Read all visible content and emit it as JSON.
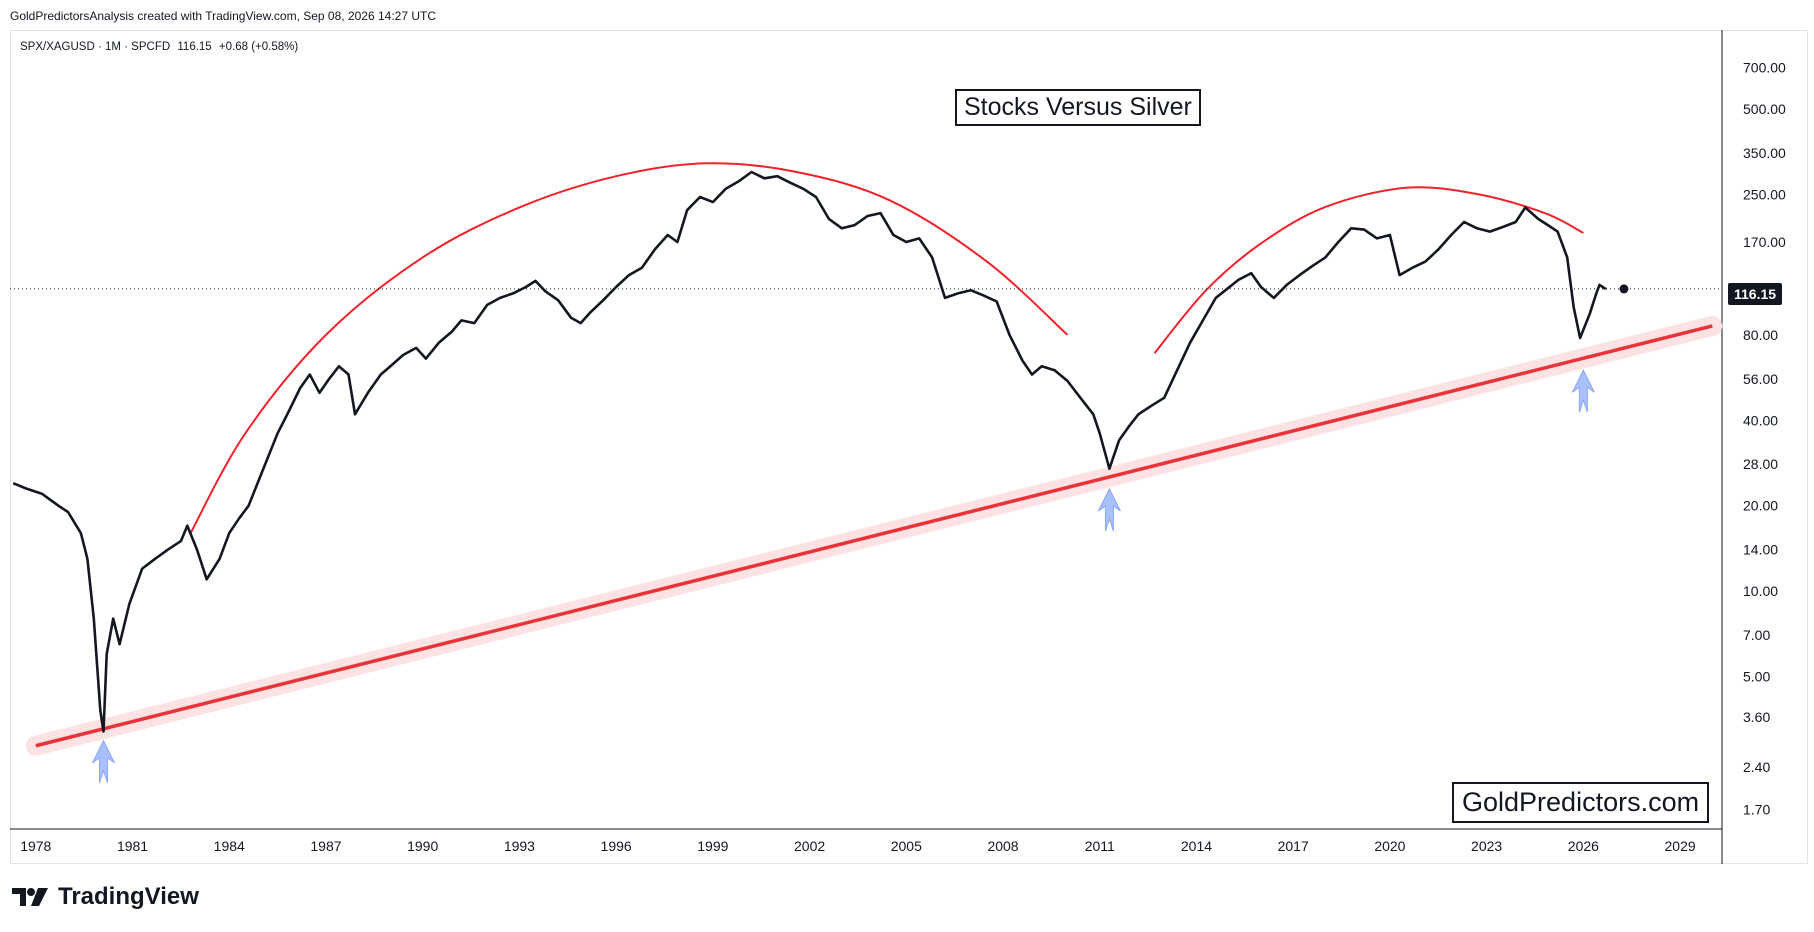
{
  "header": {
    "credit": "GoldPredictorsAnalysis created with TradingView.com, Sep 08, 2026 14:27 UTC"
  },
  "legend": {
    "symbol": "SPX/XAGUSD · 1M · SPCFD",
    "last": "116.15",
    "change": "+0.68 (+0.58%)"
  },
  "price_label": "116.15",
  "watermark": "GoldPredictors.com",
  "brand": {
    "name": "TradingView",
    "icon": "tradingview-logo-icon"
  },
  "colors": {
    "price_line": "#131722",
    "trend_line": "#e8333b",
    "trend_band": "#fde2e4",
    "arc": "#f0222b",
    "arrow": "#a9c0ff",
    "axis_text": "#131722"
  },
  "chart_data": {
    "type": "line",
    "title": "Stocks Versus Silver",
    "scale": "log",
    "ylim": [
      1.45,
      950
    ],
    "xlim": [
      1977.2,
      2030.3
    ],
    "x_ticks": [
      "1978",
      "1981",
      "1984",
      "1987",
      "1990",
      "1993",
      "1996",
      "1999",
      "2002",
      "2005",
      "2008",
      "2011",
      "2014",
      "2017",
      "2020",
      "2023",
      "2026",
      "2029"
    ],
    "y_ticks": [
      "700.00",
      "500.00",
      "350.00",
      "250.00",
      "170.00",
      "116.15",
      "80.00",
      "56.00",
      "40.00",
      "28.00",
      "20.00",
      "14.00",
      "10.00",
      "7.00",
      "5.00",
      "3.60",
      "2.40",
      "1.70"
    ],
    "grid": false,
    "last_value": 116.15,
    "series": [
      {
        "points": [
          [
            1977.3,
            24
          ],
          [
            1977.7,
            23
          ],
          [
            1978.2,
            22
          ],
          [
            1978.7,
            20
          ],
          [
            1979.0,
            19
          ],
          [
            1979.4,
            16
          ],
          [
            1979.6,
            13
          ],
          [
            1979.8,
            8
          ],
          [
            1980.0,
            3.8
          ],
          [
            1980.1,
            3.2
          ],
          [
            1980.2,
            6
          ],
          [
            1980.4,
            8
          ],
          [
            1980.6,
            6.5
          ],
          [
            1980.9,
            9
          ],
          [
            1981.3,
            12
          ],
          [
            1981.7,
            13
          ],
          [
            1982.1,
            14
          ],
          [
            1982.5,
            15
          ],
          [
            1982.7,
            17
          ],
          [
            1983.0,
            14
          ],
          [
            1983.3,
            11
          ],
          [
            1983.7,
            13
          ],
          [
            1984.0,
            16
          ],
          [
            1984.3,
            18
          ],
          [
            1984.6,
            20
          ],
          [
            1985.0,
            26
          ],
          [
            1985.5,
            36
          ],
          [
            1985.8,
            42
          ],
          [
            1986.2,
            52
          ],
          [
            1986.5,
            58
          ],
          [
            1986.8,
            50
          ],
          [
            1987.1,
            56
          ],
          [
            1987.4,
            62
          ],
          [
            1987.7,
            58
          ],
          [
            1987.9,
            42
          ],
          [
            1988.3,
            50
          ],
          [
            1988.7,
            58
          ],
          [
            1989.0,
            62
          ],
          [
            1989.4,
            68
          ],
          [
            1989.8,
            72
          ],
          [
            1990.1,
            66
          ],
          [
            1990.5,
            75
          ],
          [
            1990.9,
            82
          ],
          [
            1991.2,
            90
          ],
          [
            1991.6,
            88
          ],
          [
            1992.0,
            102
          ],
          [
            1992.4,
            108
          ],
          [
            1992.8,
            112
          ],
          [
            1993.2,
            118
          ],
          [
            1993.5,
            124
          ],
          [
            1993.8,
            114
          ],
          [
            1994.2,
            106
          ],
          [
            1994.6,
            92
          ],
          [
            1994.9,
            88
          ],
          [
            1995.2,
            96
          ],
          [
            1995.6,
            106
          ],
          [
            1996.0,
            118
          ],
          [
            1996.4,
            130
          ],
          [
            1996.8,
            138
          ],
          [
            1997.2,
            160
          ],
          [
            1997.6,
            180
          ],
          [
            1997.9,
            170
          ],
          [
            1998.2,
            220
          ],
          [
            1998.6,
            245
          ],
          [
            1999.0,
            235
          ],
          [
            1999.4,
            262
          ],
          [
            1999.8,
            278
          ],
          [
            2000.2,
            300
          ],
          [
            2000.6,
            285
          ],
          [
            2001.0,
            290
          ],
          [
            2001.4,
            275
          ],
          [
            2001.8,
            262
          ],
          [
            2002.2,
            245
          ],
          [
            2002.6,
            205
          ],
          [
            2003.0,
            190
          ],
          [
            2003.4,
            195
          ],
          [
            2003.8,
            210
          ],
          [
            2004.2,
            215
          ],
          [
            2004.6,
            180
          ],
          [
            2005.0,
            170
          ],
          [
            2005.4,
            175
          ],
          [
            2005.8,
            150
          ],
          [
            2006.2,
            108
          ],
          [
            2006.6,
            112
          ],
          [
            2007.0,
            115
          ],
          [
            2007.4,
            110
          ],
          [
            2007.8,
            105
          ],
          [
            2008.2,
            80
          ],
          [
            2008.6,
            65
          ],
          [
            2008.9,
            58
          ],
          [
            2009.2,
            62
          ],
          [
            2009.6,
            60
          ],
          [
            2010.0,
            55
          ],
          [
            2010.4,
            48
          ],
          [
            2010.8,
            42
          ],
          [
            2011.0,
            36
          ],
          [
            2011.3,
            27
          ],
          [
            2011.6,
            34
          ],
          [
            2011.9,
            38
          ],
          [
            2012.2,
            42
          ],
          [
            2012.6,
            45
          ],
          [
            2013.0,
            48
          ],
          [
            2013.4,
            60
          ],
          [
            2013.8,
            75
          ],
          [
            2014.2,
            90
          ],
          [
            2014.6,
            108
          ],
          [
            2014.9,
            115
          ],
          [
            2015.3,
            125
          ],
          [
            2015.7,
            132
          ],
          [
            2016.0,
            118
          ],
          [
            2016.4,
            108
          ],
          [
            2016.8,
            120
          ],
          [
            2017.2,
            130
          ],
          [
            2017.6,
            140
          ],
          [
            2018.0,
            150
          ],
          [
            2018.4,
            170
          ],
          [
            2018.8,
            190
          ],
          [
            2019.2,
            188
          ],
          [
            2019.6,
            175
          ],
          [
            2020.0,
            180
          ],
          [
            2020.3,
            130
          ],
          [
            2020.7,
            138
          ],
          [
            2021.1,
            145
          ],
          [
            2021.5,
            160
          ],
          [
            2021.9,
            180
          ],
          [
            2022.3,
            200
          ],
          [
            2022.7,
            190
          ],
          [
            2023.1,
            185
          ],
          [
            2023.5,
            192
          ],
          [
            2023.9,
            200
          ],
          [
            2024.2,
            225
          ],
          [
            2024.6,
            205
          ],
          [
            2024.9,
            195
          ],
          [
            2025.2,
            185
          ],
          [
            2025.5,
            150
          ],
          [
            2025.7,
            100
          ],
          [
            2025.9,
            78
          ],
          [
            2026.2,
            95
          ],
          [
            2026.4,
            112
          ],
          [
            2026.5,
            120
          ],
          [
            2026.7,
            116
          ]
        ]
      }
    ],
    "overlays": {
      "trend_line": {
        "from": [
          1978.0,
          2.85
        ],
        "to": [
          2030.0,
          86
        ]
      },
      "arcs": [
        {
          "points": [
            [
              1982.8,
              16
            ],
            [
              1984.5,
              36
            ],
            [
              1987.0,
              80
            ],
            [
              1990.0,
              150
            ],
            [
              1993.0,
              225
            ],
            [
              1996.0,
              290
            ],
            [
              1998.8,
              322
            ],
            [
              2001.6,
              300
            ],
            [
              2004.5,
              238
            ],
            [
              2007.5,
              145
            ],
            [
              2010.0,
              80
            ]
          ]
        },
        {
          "points": [
            [
              2012.7,
              69
            ],
            [
              2014.3,
              115
            ],
            [
              2016.0,
              168
            ],
            [
              2018.0,
              226
            ],
            [
              2020.5,
              264
            ],
            [
              2022.7,
              251
            ],
            [
              2024.8,
              215
            ],
            [
              2026.0,
              183
            ]
          ]
        }
      ],
      "arrows": [
        1980.1,
        2011.3,
        2026.0
      ]
    }
  }
}
